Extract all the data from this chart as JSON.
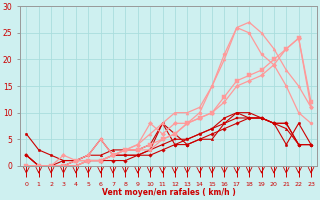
{
  "bg_color": "#cef0f0",
  "grid_color": "#aadddd",
  "line_color_dark": "#cc0000",
  "xlabel": "Vent moyen/en rafales ( km/h )",
  "ylabel_ticks": [
    0,
    5,
    10,
    15,
    20,
    25,
    30
  ],
  "xlim": [
    -0.5,
    23.5
  ],
  "ylim": [
    0,
    30
  ],
  "x": [
    0,
    1,
    2,
    3,
    4,
    5,
    6,
    7,
    8,
    9,
    10,
    11,
    12,
    13,
    14,
    15,
    16,
    17,
    18,
    19,
    20,
    21,
    22,
    23
  ],
  "series": [
    {
      "y": [
        2,
        0,
        0,
        0,
        0,
        1,
        1,
        1,
        1,
        2,
        2,
        3,
        4,
        4,
        5,
        6,
        7,
        8,
        9,
        9,
        8,
        8,
        4,
        4
      ],
      "color": "#cc0000",
      "marker": "D",
      "markersize": 1.8,
      "linewidth": 0.8
    },
    {
      "y": [
        2,
        0,
        0,
        0,
        1,
        1,
        1,
        2,
        2,
        2,
        3,
        4,
        5,
        5,
        6,
        7,
        8,
        9,
        9,
        9,
        8,
        8,
        4,
        4
      ],
      "color": "#cc0000",
      "marker": "s",
      "markersize": 1.8,
      "linewidth": 0.8
    },
    {
      "y": [
        2,
        0,
        0,
        1,
        1,
        2,
        2,
        3,
        3,
        3,
        4,
        8,
        6,
        4,
        5,
        5,
        8,
        10,
        10,
        9,
        8,
        7,
        4,
        4
      ],
      "color": "#cc0000",
      "marker": "^",
      "markersize": 1.8,
      "linewidth": 0.8
    },
    {
      "y": [
        6,
        3,
        2,
        1,
        1,
        2,
        5,
        2,
        2,
        2,
        3,
        8,
        4,
        5,
        6,
        7,
        9,
        10,
        9,
        9,
        8,
        4,
        8,
        4
      ],
      "color": "#cc0000",
      "marker": "o",
      "markersize": 1.8,
      "linewidth": 0.8
    },
    {
      "y": [
        0,
        0,
        0,
        2,
        1,
        2,
        5,
        2,
        3,
        4,
        8,
        6,
        8,
        8,
        9,
        10,
        12,
        15,
        16,
        17,
        19,
        22,
        24,
        11
      ],
      "color": "#ff9999",
      "marker": "D",
      "markersize": 2.2,
      "linewidth": 0.9
    },
    {
      "y": [
        0,
        0,
        0,
        0,
        1,
        1,
        1,
        2,
        3,
        3,
        4,
        5,
        6,
        8,
        9,
        10,
        13,
        16,
        17,
        18,
        20,
        22,
        24,
        12
      ],
      "color": "#ff9999",
      "marker": "s",
      "markersize": 2.2,
      "linewidth": 0.9
    },
    {
      "y": [
        0,
        0,
        0,
        0,
        0,
        1,
        1,
        2,
        3,
        4,
        6,
        8,
        10,
        10,
        11,
        15,
        20,
        26,
        27,
        25,
        22,
        18,
        15,
        11
      ],
      "color": "#ff9999",
      "marker": "^",
      "markersize": 2.2,
      "linewidth": 0.9
    },
    {
      "y": [
        0,
        0,
        0,
        0,
        0,
        1,
        1,
        2,
        3,
        3,
        3,
        5,
        6,
        8,
        10,
        15,
        21,
        26,
        25,
        21,
        19,
        15,
        10,
        8
      ],
      "color": "#ff9999",
      "marker": "o",
      "markersize": 2.2,
      "linewidth": 0.9
    }
  ]
}
